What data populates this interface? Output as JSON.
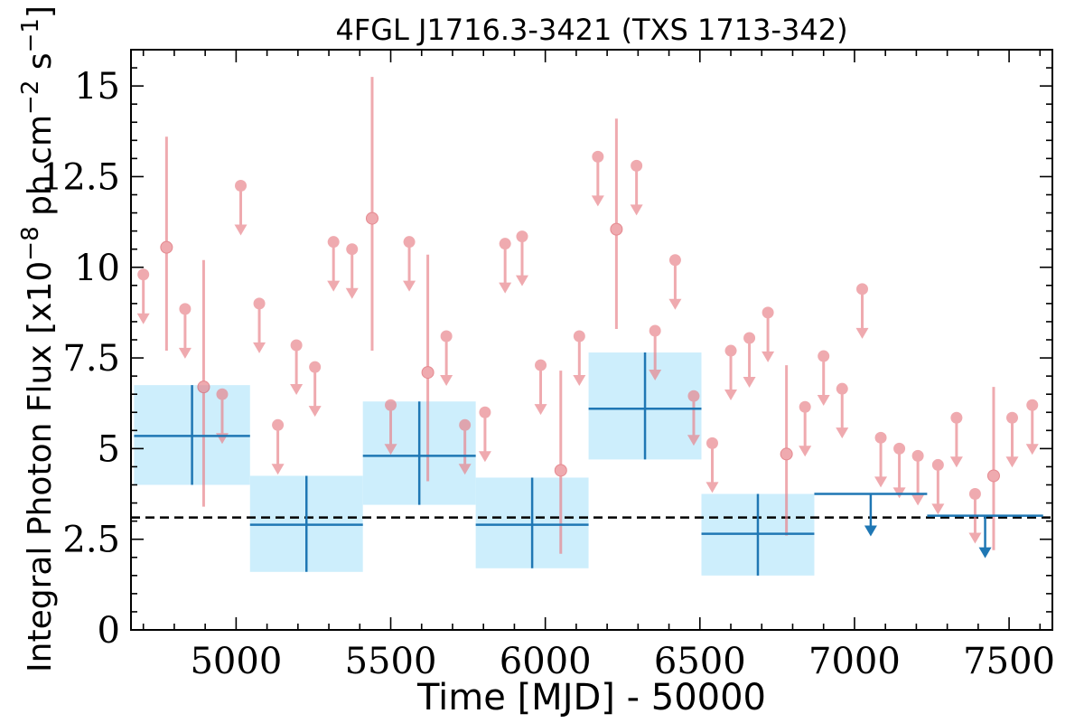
{
  "chart_data": {
    "type": "scatter",
    "title": "4FGL J1716.3-3421 (TXS 1713-342)",
    "xlabel": "Time [MJD] - 50000",
    "ylabel_parts": {
      "pre": "Integral Photon Flux [x10",
      "exp1": "−8",
      "mid": " ph cm",
      "exp2": "−2",
      "mid2": " s",
      "exp3": "−1",
      "post": "]"
    },
    "xlim": [
      4660,
      7640
    ],
    "ylim": [
      0,
      16
    ],
    "xticks": [
      5000,
      5500,
      6000,
      6500,
      7000,
      7500
    ],
    "xtick_labels": [
      "5000",
      "5500",
      "6000",
      "6500",
      "7000",
      "7500"
    ],
    "yticks": [
      0,
      2.5,
      5,
      7.5,
      10,
      12.5,
      15
    ],
    "ytick_labels": [
      "0",
      "2.5",
      "5",
      "7.5",
      "10",
      "12.5",
      "15"
    ],
    "mean_flux": 3.1,
    "colors": {
      "short_bins": "#e8828a",
      "long_bins": "#1f77b4",
      "band": "#cdeefc",
      "mean_line": "#000000"
    },
    "short_bins": [
      {
        "t": 4700,
        "flux": 9.8,
        "ul": true
      },
      {
        "t": 4775,
        "flux": 10.55,
        "lo": 7.7,
        "hi": 13.6
      },
      {
        "t": 4835,
        "flux": 8.85,
        "ul": true
      },
      {
        "t": 4895,
        "flux": 6.7,
        "lo": 3.4,
        "hi": 10.2
      },
      {
        "t": 4955,
        "flux": 6.5,
        "ul": true
      },
      {
        "t": 5015,
        "flux": 12.25,
        "ul": true
      },
      {
        "t": 5075,
        "flux": 9.0,
        "ul": true
      },
      {
        "t": 5135,
        "flux": 5.65,
        "ul": true
      },
      {
        "t": 5195,
        "flux": 7.85,
        "ul": true
      },
      {
        "t": 5255,
        "flux": 7.25,
        "ul": true
      },
      {
        "t": 5315,
        "flux": 10.7,
        "ul": true
      },
      {
        "t": 5375,
        "flux": 10.5,
        "ul": true
      },
      {
        "t": 5440,
        "flux": 11.35,
        "lo": 7.7,
        "hi": 15.25
      },
      {
        "t": 5500,
        "flux": 6.2,
        "ul": true
      },
      {
        "t": 5560,
        "flux": 10.7,
        "ul": true
      },
      {
        "t": 5620,
        "flux": 7.1,
        "lo": 4.1,
        "hi": 10.35
      },
      {
        "t": 5680,
        "flux": 8.1,
        "ul": true
      },
      {
        "t": 5740,
        "flux": 5.65,
        "ul": true
      },
      {
        "t": 5805,
        "flux": 6.0,
        "ul": true
      },
      {
        "t": 5870,
        "flux": 10.65,
        "ul": true
      },
      {
        "t": 5925,
        "flux": 10.85,
        "ul": true
      },
      {
        "t": 5985,
        "flux": 7.3,
        "ul": true
      },
      {
        "t": 6050,
        "flux": 4.4,
        "lo": 2.1,
        "hi": 7.15
      },
      {
        "t": 6110,
        "flux": 8.1,
        "ul": true
      },
      {
        "t": 6170,
        "flux": 13.05,
        "ul": true
      },
      {
        "t": 6230,
        "flux": 11.05,
        "lo": 8.3,
        "hi": 14.1
      },
      {
        "t": 6295,
        "flux": 12.8,
        "ul": true
      },
      {
        "t": 6355,
        "flux": 8.25,
        "ul": true
      },
      {
        "t": 6420,
        "flux": 10.2,
        "ul": true
      },
      {
        "t": 6480,
        "flux": 6.45,
        "ul": true
      },
      {
        "t": 6540,
        "flux": 5.15,
        "ul": true
      },
      {
        "t": 6600,
        "flux": 7.7,
        "ul": true
      },
      {
        "t": 6660,
        "flux": 8.05,
        "ul": true
      },
      {
        "t": 6720,
        "flux": 8.75,
        "ul": true
      },
      {
        "t": 6780,
        "flux": 4.85,
        "lo": 2.6,
        "hi": 7.3
      },
      {
        "t": 6840,
        "flux": 6.15,
        "ul": true
      },
      {
        "t": 6900,
        "flux": 7.55,
        "ul": true
      },
      {
        "t": 6960,
        "flux": 6.65,
        "ul": true
      },
      {
        "t": 7025,
        "flux": 9.4,
        "ul": true
      },
      {
        "t": 7085,
        "flux": 5.3,
        "ul": true
      },
      {
        "t": 7145,
        "flux": 5.0,
        "ul": true
      },
      {
        "t": 7205,
        "flux": 4.8,
        "ul": true
      },
      {
        "t": 7270,
        "flux": 4.55,
        "ul": true
      },
      {
        "t": 7330,
        "flux": 5.85,
        "ul": true
      },
      {
        "t": 7390,
        "flux": 3.75,
        "ul": true
      },
      {
        "t": 7450,
        "flux": 4.25,
        "lo": 2.2,
        "hi": 6.7
      },
      {
        "t": 7510,
        "flux": 5.85,
        "ul": true
      },
      {
        "t": 7575,
        "flux": 6.2,
        "ul": true
      }
    ],
    "long_bins": [
      {
        "t0": 4670,
        "t1": 5045,
        "flux": 5.35,
        "lo": 4.0,
        "hi": 6.75
      },
      {
        "t0": 5045,
        "t1": 5410,
        "flux": 2.9,
        "lo": 1.6,
        "hi": 4.25
      },
      {
        "t0": 5410,
        "t1": 5775,
        "flux": 4.8,
        "lo": 3.45,
        "hi": 6.3
      },
      {
        "t0": 5775,
        "t1": 6140,
        "flux": 2.9,
        "lo": 1.7,
        "hi": 4.2
      },
      {
        "t0": 6140,
        "t1": 6505,
        "flux": 6.1,
        "lo": 4.7,
        "hi": 7.65
      },
      {
        "t0": 6505,
        "t1": 6870,
        "flux": 2.65,
        "lo": 1.5,
        "hi": 3.75
      },
      {
        "t0": 6870,
        "t1": 7235,
        "flux": 3.75,
        "ul": true
      },
      {
        "t0": 7235,
        "t1": 7610,
        "flux": 3.15,
        "ul": true
      }
    ]
  }
}
